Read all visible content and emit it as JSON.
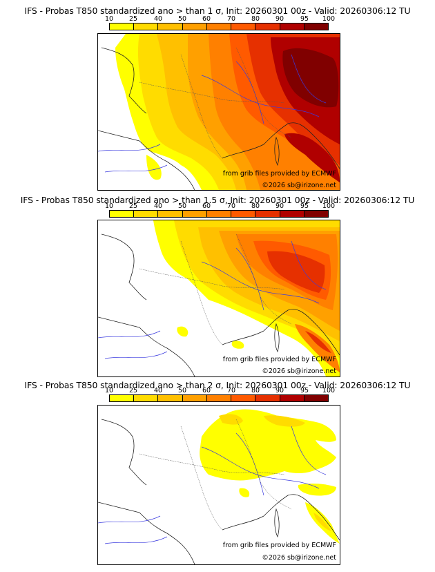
{
  "colors": {
    "palette": [
      "#ffff00",
      "#ffdc00",
      "#ffc000",
      "#ffa000",
      "#ff8000",
      "#ff5a00",
      "#e63000",
      "#b00000",
      "#800000",
      "#550000"
    ]
  },
  "legend": {
    "ticks": [
      "10",
      "25",
      "40",
      "50",
      "60",
      "70",
      "80",
      "90",
      "95",
      "100"
    ]
  },
  "panels": [
    {
      "title": "IFS - Probas T850  standardized ano > than 1 σ, Init: 20260301 00z - Valid: 20260306:12 TU",
      "credit_source": "from grib files provided by ECMWF",
      "credit_copyright": "©2026 sb@irizone.net"
    },
    {
      "title": "IFS - Probas T850  standardized ano > than 1.5 σ, Init: 20260301 00z - Valid: 20260306:12 TU",
      "credit_source": "from grib files provided by ECMWF",
      "credit_copyright": "©2026 sb@irizone.net"
    },
    {
      "title": "IFS - Probas T850  standardized ano > than 2 σ, Init: 20260301 00z - Valid: 20260306:12 TU",
      "credit_source": "from grib files provided by ECMWF",
      "credit_copyright": "©2026 sb@irizone.net"
    }
  ]
}
